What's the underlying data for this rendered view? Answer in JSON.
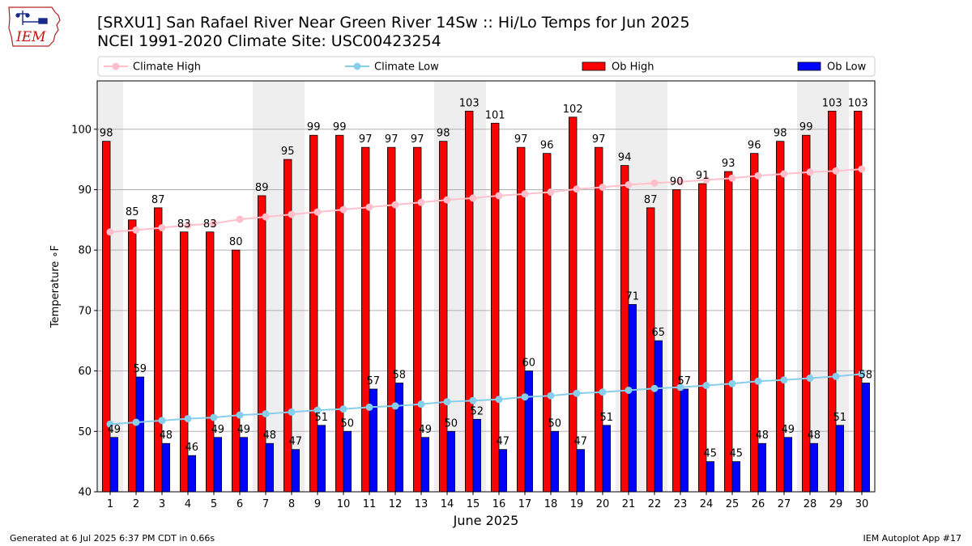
{
  "title_line1": "[SRXU1] San Rafael River Near Green River 14Sw :: Hi/Lo Temps for Jun 2025",
  "title_line2": "NCEI 1991-2020 Climate Site: USC00423254",
  "logo_text": "IEM",
  "footer_left": "Generated at 6 Jul 2025 6:37 PM CDT in 0.66s",
  "footer_right": "IEM Autoplot App #17",
  "colors": {
    "ob_high": "#ff0000",
    "ob_low": "#0000ff",
    "climate_high": "#ffc0cb",
    "climate_low": "#87ceeb",
    "weekend_shade": "#eeeeee",
    "grid": "#b0b0b0"
  },
  "chart_data": {
    "type": "bar",
    "xlabel": "June 2025",
    "ylabel": "Temperature ∘F",
    "ylim": [
      40,
      108
    ],
    "yticks": [
      40,
      50,
      60,
      70,
      80,
      90,
      100
    ],
    "grid": "horizontal",
    "legend_placement": "top",
    "categories": [
      "1",
      "2",
      "3",
      "4",
      "5",
      "6",
      "7",
      "8",
      "9",
      "10",
      "11",
      "12",
      "13",
      "14",
      "15",
      "16",
      "17",
      "18",
      "19",
      "20",
      "21",
      "22",
      "23",
      "24",
      "25",
      "26",
      "27",
      "28",
      "29",
      "30"
    ],
    "shaded_days": [
      1,
      7,
      8,
      14,
      15,
      21,
      22,
      28,
      29
    ],
    "series": [
      {
        "name": "Ob High",
        "kind": "bar",
        "values": [
          98,
          85,
          87,
          83,
          83,
          80,
          89,
          95,
          99,
          99,
          97,
          97,
          97,
          98,
          103,
          101,
          97,
          96,
          102,
          97,
          94,
          87,
          90,
          91,
          93,
          96,
          98,
          99,
          103,
          103
        ]
      },
      {
        "name": "Ob Low",
        "kind": "bar",
        "values": [
          49,
          59,
          48,
          46,
          49,
          49,
          48,
          47,
          51,
          50,
          57,
          58,
          49,
          50,
          52,
          47,
          60,
          50,
          47,
          51,
          71,
          65,
          57,
          45,
          45,
          48,
          49,
          48,
          51,
          58
        ]
      },
      {
        "name": "Climate High",
        "kind": "line",
        "values": [
          83.0,
          83.3,
          83.7,
          84.1,
          84.4,
          85.1,
          85.5,
          85.9,
          86.3,
          86.7,
          87.1,
          87.5,
          87.9,
          88.3,
          88.6,
          89.0,
          89.3,
          89.6,
          90.1,
          90.4,
          90.8,
          91.1,
          91.3,
          91.6,
          91.9,
          92.3,
          92.6,
          92.9,
          93.1,
          93.4
        ]
      },
      {
        "name": "Climate Low",
        "kind": "line",
        "values": [
          51.2,
          51.5,
          51.8,
          52.1,
          52.3,
          52.7,
          52.9,
          53.2,
          53.5,
          53.7,
          54.0,
          54.2,
          54.5,
          54.9,
          55.1,
          55.3,
          55.7,
          55.9,
          56.3,
          56.5,
          56.8,
          57.1,
          57.3,
          57.6,
          57.9,
          58.3,
          58.5,
          58.8,
          59.1,
          59.5
        ]
      }
    ]
  }
}
